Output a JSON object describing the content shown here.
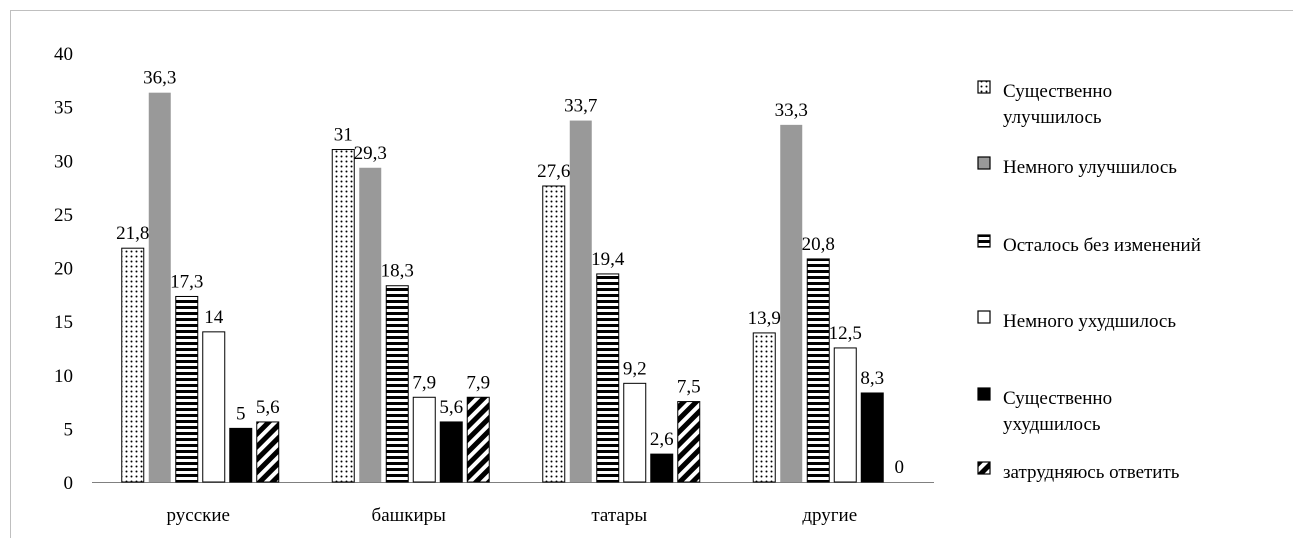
{
  "chart_data": {
    "type": "bar",
    "title": "",
    "xlabel": "",
    "ylabel": "",
    "categories": [
      "русские",
      "башкиры",
      "татары",
      "другие"
    ],
    "ylim": [
      0,
      40
    ],
    "yticks": [
      "0",
      "5",
      "10",
      "15",
      "20",
      "25",
      "30",
      "35",
      "40"
    ],
    "grid": false,
    "legend_position": "right",
    "series": [
      {
        "name": "Существенно улучшилось",
        "legend_lines": [
          "Существенно",
          "улучшилось"
        ],
        "pattern": "dots",
        "color": "#000000",
        "values": [
          21.8,
          31,
          27.6,
          13.9
        ],
        "labels": [
          "21,8",
          "31",
          "27,6",
          "13,9"
        ]
      },
      {
        "name": "Немного улучшилось",
        "legend_lines": [
          "Немного улучшилось"
        ],
        "pattern": "solid-gray",
        "color": "#999999",
        "values": [
          36.3,
          29.3,
          33.7,
          33.3
        ],
        "labels": [
          "36,3",
          "29,3",
          "33,7",
          "33,3"
        ]
      },
      {
        "name": "Осталось без изменений",
        "legend_lines": [
          "Осталось без изменений"
        ],
        "pattern": "horizontal-lines",
        "color": "#000000",
        "values": [
          17.3,
          18.3,
          19.4,
          20.8
        ],
        "labels": [
          "17,3",
          "18,3",
          "19,4",
          "20,8"
        ]
      },
      {
        "name": "Немного ухудшилось",
        "legend_lines": [
          "Немного ухудшилось"
        ],
        "pattern": "white",
        "color": "#ffffff",
        "values": [
          14,
          7.9,
          9.2,
          12.5
        ],
        "labels": [
          "14",
          "7,9",
          "9,2",
          "12,5"
        ]
      },
      {
        "name": "Существенно ухудшилось",
        "legend_lines": [
          "Существенно",
          "ухудшилось"
        ],
        "pattern": "solid-black",
        "color": "#000000",
        "values": [
          5,
          5.6,
          2.6,
          8.3
        ],
        "labels": [
          "5",
          "5,6",
          "2,6",
          "8,3"
        ]
      },
      {
        "name": "затрудняюсь ответить",
        "legend_lines": [
          "затрудняюсь ответить"
        ],
        "pattern": "diagonal-stripes",
        "color": "#000000",
        "values": [
          5.6,
          7.9,
          7.5,
          0
        ],
        "labels": [
          "5,6",
          "7,9",
          "7,5",
          "0"
        ]
      }
    ]
  }
}
